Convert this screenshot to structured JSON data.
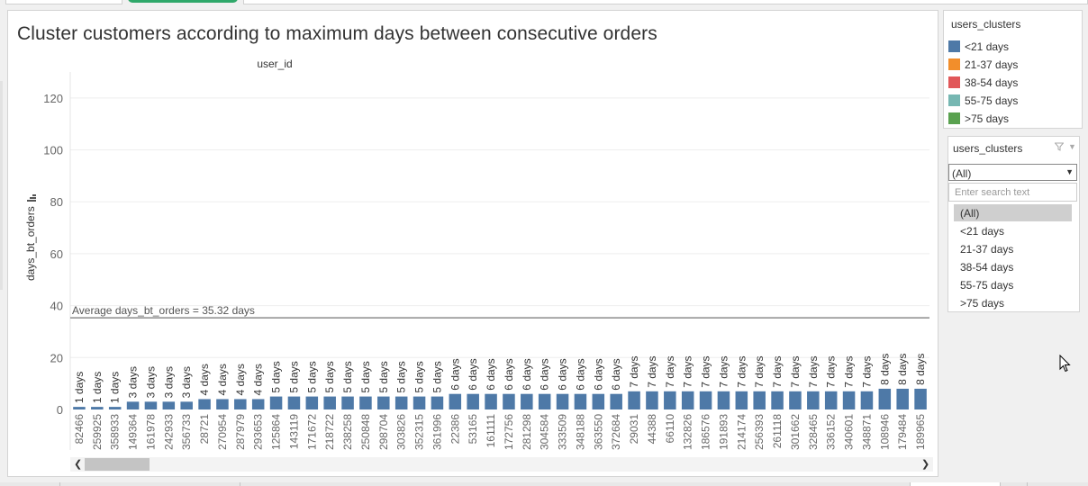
{
  "title": "Cluster customers according to maximum days between consecutive orders",
  "chart_data": {
    "type": "bar",
    "column_header": "user_id",
    "ylabel": "days_bt_orders",
    "ylim": [
      0,
      130
    ],
    "yticks": [
      0,
      20,
      40,
      60,
      80,
      100,
      120
    ],
    "grid": true,
    "reference_line": {
      "value": 35.32,
      "label": "Average days_bt_orders = 35.32 days"
    },
    "categories": [
      "82466",
      "259925",
      "358933",
      "149364",
      "161978",
      "242933",
      "356733",
      "28721",
      "270954",
      "287979",
      "293653",
      "125864",
      "143119",
      "171672",
      "218722",
      "238258",
      "250848",
      "298704",
      "303826",
      "352315",
      "361996",
      "22386",
      "53165",
      "161111",
      "172756",
      "281298",
      "304584",
      "333509",
      "348188",
      "363550",
      "372684",
      "29031",
      "44388",
      "66110",
      "132826",
      "186576",
      "191893",
      "214174",
      "256393",
      "261118",
      "301662",
      "328465",
      "336152",
      "340601",
      "348871",
      "108946",
      "179484",
      "189965"
    ],
    "values": [
      1,
      1,
      1,
      3,
      3,
      3,
      3,
      4,
      4,
      4,
      4,
      5,
      5,
      5,
      5,
      5,
      5,
      5,
      5,
      5,
      5,
      6,
      6,
      6,
      6,
      6,
      6,
      6,
      6,
      6,
      6,
      7,
      7,
      7,
      7,
      7,
      7,
      7,
      7,
      7,
      7,
      7,
      7,
      7,
      7,
      8,
      8,
      8
    ],
    "data_labels": [
      "1 days",
      "1 days",
      "1 days",
      "3 days",
      "3 days",
      "3 days",
      "3 days",
      "4 days",
      "4 days",
      "4 days",
      "4 days",
      "5 days",
      "5 days",
      "5 days",
      "5 days",
      "5 days",
      "5 days",
      "5 days",
      "5 days",
      "5 days",
      "5 days",
      "6 days",
      "6 days",
      "6 days",
      "6 days",
      "6 days",
      "6 days",
      "6 days",
      "6 days",
      "6 days",
      "6 days",
      "7 days",
      "7 days",
      "7 days",
      "7 days",
      "7 days",
      "7 days",
      "7 days",
      "7 days",
      "7 days",
      "7 days",
      "7 days",
      "7 days",
      "7 days",
      "7 days",
      "8 days",
      "8 days",
      "8 days"
    ],
    "series": [
      {
        "name": "<21 days",
        "color": "#4e79a7"
      }
    ]
  },
  "legend": {
    "title": "users_clusters",
    "items": [
      {
        "label": "<21 days",
        "color": "#4e79a7"
      },
      {
        "label": "21-37 days",
        "color": "#f28e2b"
      },
      {
        "label": "38-54 days",
        "color": "#e15759"
      },
      {
        "label": "55-75 days",
        "color": "#76b7b2"
      },
      {
        "label": ">75 days",
        "color": "#59a14f"
      }
    ]
  },
  "filter": {
    "title": "users_clusters",
    "selected": "(All)",
    "search_placeholder": "Enter search text",
    "options": [
      "(All)",
      "<21 days",
      "21-37 days",
      "38-54 days",
      "55-75 days",
      ">75 days"
    ]
  },
  "icons": {
    "filter": "funnel-icon",
    "menu": "dropdown-caret-icon",
    "sort": "sort-descending-icon",
    "scroll_left": "chevron-left-icon",
    "scroll_right": "chevron-right-icon",
    "cursor": "mouse-pointer-icon"
  }
}
